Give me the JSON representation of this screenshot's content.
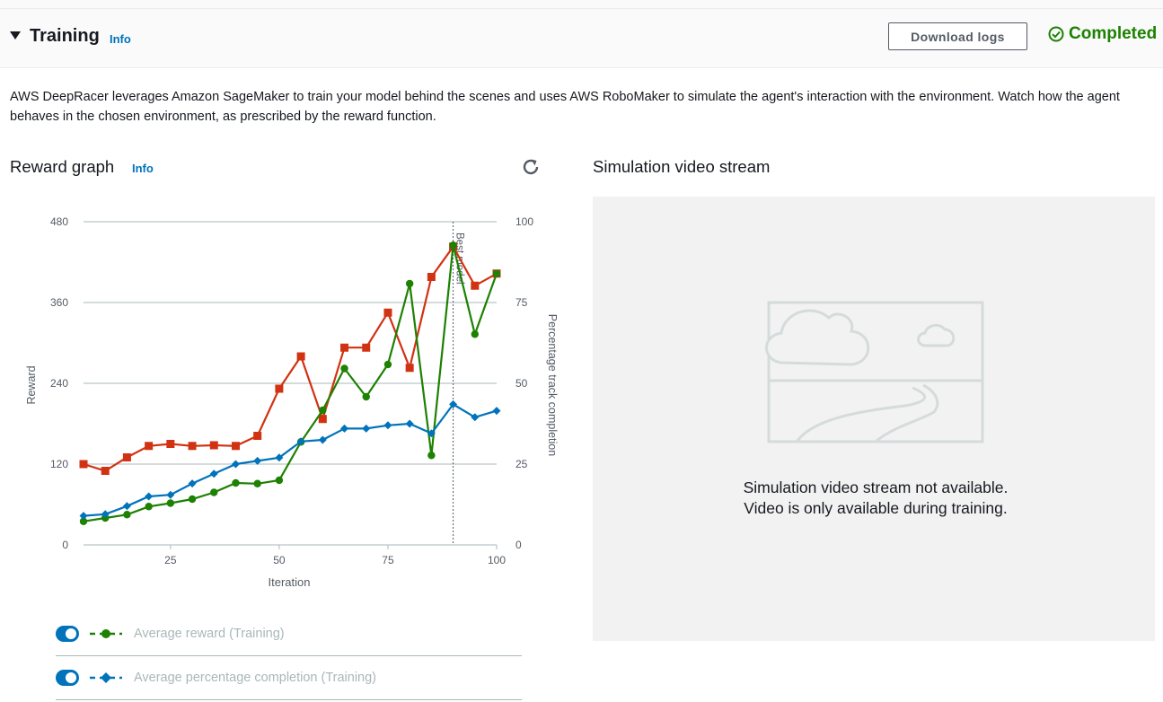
{
  "header": {
    "title": "Training",
    "info": "Info",
    "download_label": "Download logs",
    "status": "Completed",
    "status_color": "#1d8102"
  },
  "description": "AWS DeepRacer leverages Amazon SageMaker to train your model behind the scenes and uses AWS RoboMaker to simulate the agent's interaction with the environment. Watch how the agent behaves in the chosen environment, as prescribed by the reward function.",
  "reward_graph": {
    "title": "Reward graph",
    "info": "Info",
    "refresh_icon": "refresh-icon"
  },
  "video": {
    "title": "Simulation video stream",
    "message_line1": "Simulation video stream not available.",
    "message_line2": "Video is only available during training.",
    "placeholder_icon": "image-placeholder-icon"
  },
  "legend": [
    {
      "label": "Average reward (Training)",
      "enabled": true,
      "color": "#1d8102",
      "marker": "circle"
    },
    {
      "label": "Average percentage completion (Training)",
      "enabled": true,
      "color": "#0073bb",
      "marker": "diamond"
    }
  ],
  "chart_data": {
    "type": "line",
    "xlabel": "Iteration",
    "ylabel": "Reward",
    "y2label": "Percentage track completion",
    "xlim": [
      5,
      100
    ],
    "ylim": [
      0,
      480
    ],
    "y2lim": [
      0,
      100
    ],
    "x_ticks": [
      25,
      50,
      75,
      100
    ],
    "y_ticks": [
      0,
      120,
      240,
      360,
      480
    ],
    "y2_ticks": [
      0,
      25,
      50,
      75,
      100
    ],
    "annotation": {
      "x": 90,
      "label": "Best model"
    },
    "x": [
      5,
      10,
      15,
      20,
      25,
      30,
      35,
      40,
      45,
      50,
      55,
      60,
      65,
      70,
      75,
      80,
      85,
      90,
      95,
      100
    ],
    "series": [
      {
        "color": "#d13212",
        "marker": "square",
        "axis": "left",
        "values": [
          120,
          110,
          130,
          147,
          150,
          147,
          148,
          147,
          162,
          232,
          280,
          187,
          293,
          293,
          345,
          263,
          398,
          443,
          385,
          403
        ]
      },
      {
        "name": "Average reward (Training)",
        "color": "#1d8102",
        "marker": "circle",
        "axis": "left",
        "values": [
          35,
          40,
          45,
          57,
          62,
          68,
          78,
          92,
          91,
          96,
          153,
          200,
          262,
          220,
          268,
          388,
          133,
          445,
          313,
          403
        ]
      },
      {
        "name": "Average percentage completion (Training)",
        "color": "#0073bb",
        "marker": "diamond",
        "axis": "right",
        "values": [
          9,
          9.5,
          12,
          15,
          15.5,
          19,
          22,
          25,
          26,
          27,
          32,
          32.5,
          36,
          36,
          37,
          37.5,
          34.5,
          43.5,
          39.5,
          41.5
        ]
      }
    ]
  }
}
